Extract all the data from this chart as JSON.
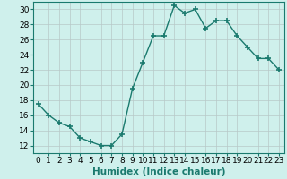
{
  "x": [
    0,
    1,
    2,
    3,
    4,
    5,
    6,
    7,
    8,
    9,
    10,
    11,
    12,
    13,
    14,
    15,
    16,
    17,
    18,
    19,
    20,
    21,
    22,
    23
  ],
  "y": [
    17.5,
    16.0,
    15.0,
    14.5,
    13.0,
    12.5,
    12.0,
    12.0,
    13.5,
    19.5,
    23.0,
    26.5,
    26.5,
    30.5,
    29.5,
    30.0,
    27.5,
    28.5,
    28.5,
    26.5,
    25.0,
    23.5,
    23.5,
    22.0
  ],
  "line_color": "#1a7a6e",
  "marker": "+",
  "markersize": 4,
  "markeredgewidth": 1.2,
  "linewidth": 1.0,
  "linestyle": "-",
  "bg_color": "#cff0ec",
  "grid_color_major": "#b8c8c8",
  "grid_color_minor": "#d8e8e8",
  "xlabel": "Humidex (Indice chaleur)",
  "xlabel_fontsize": 7.5,
  "tick_fontsize": 6.5,
  "xlim": [
    -0.5,
    23.5
  ],
  "ylim": [
    11,
    31
  ],
  "yticks": [
    12,
    14,
    16,
    18,
    20,
    22,
    24,
    26,
    28,
    30
  ],
  "xticks": [
    0,
    1,
    2,
    3,
    4,
    5,
    6,
    7,
    8,
    9,
    10,
    11,
    12,
    13,
    14,
    15,
    16,
    17,
    18,
    19,
    20,
    21,
    22,
    23
  ]
}
